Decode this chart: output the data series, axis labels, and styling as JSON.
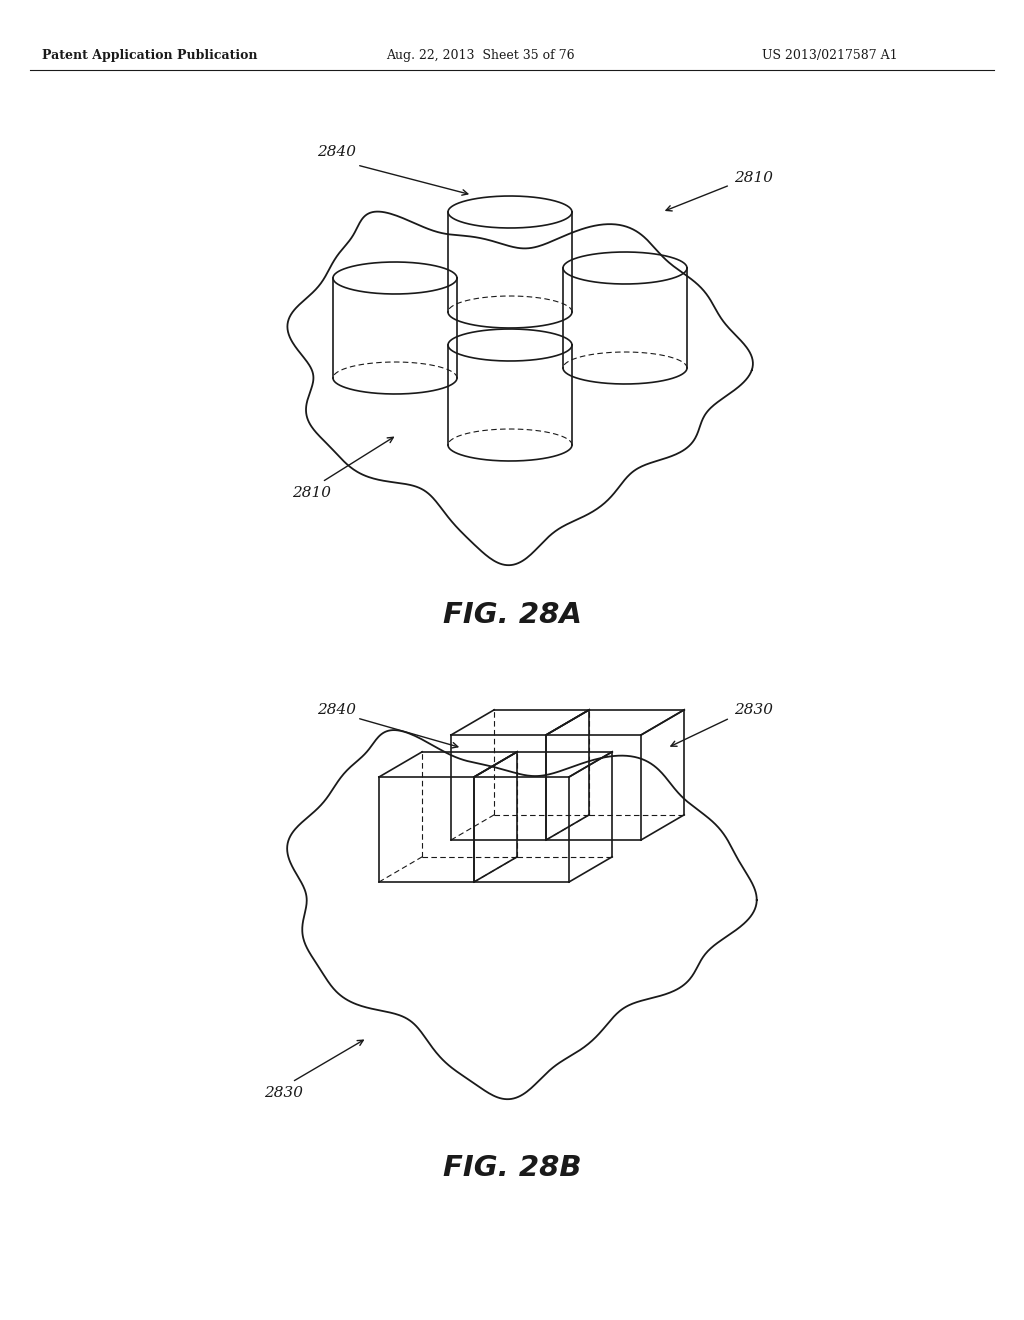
{
  "header_left": "Patent Application Publication",
  "header_mid": "Aug. 22, 2013  Sheet 35 of 76",
  "header_right": "US 2013/0217587 A1",
  "fig_a_label": "FIG. 28A",
  "fig_b_label": "FIG. 28B",
  "label_2840_a": "2840",
  "label_2810_top": "2810",
  "label_2810_bot": "2810",
  "label_2840_b": "2840",
  "label_2830_top": "2830",
  "label_2830_bot": "2830",
  "background": "#ffffff",
  "line_color": "#1a1a1a"
}
